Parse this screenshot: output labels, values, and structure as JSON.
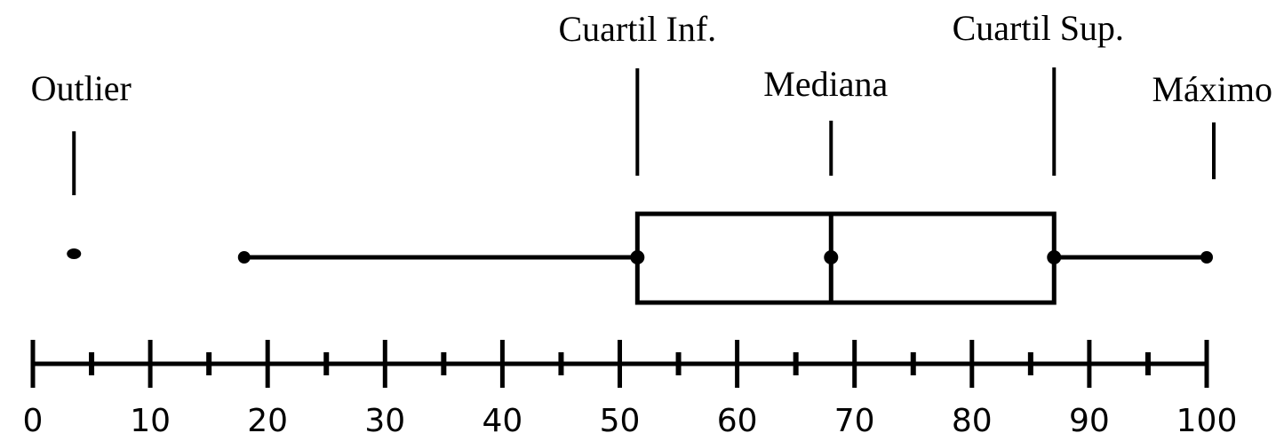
{
  "chart_data": {
    "type": "boxplot",
    "outlier": 3.5,
    "whisker_low": 18,
    "q1": 51.5,
    "median": 68,
    "q3": 87,
    "max": 100,
    "xlim": [
      0,
      100
    ],
    "major_ticks": [
      0,
      10,
      20,
      30,
      40,
      50,
      60,
      70,
      80,
      90,
      100
    ],
    "minor_ticks": [
      5,
      15,
      25,
      35,
      45,
      55,
      65,
      75,
      85,
      95
    ],
    "tick_labels": [
      "0",
      "10",
      "20",
      "30",
      "40",
      "50",
      "60",
      "70",
      "80",
      "90",
      "100"
    ],
    "annotations": [
      {
        "key": "outlier",
        "label": "Outlier",
        "value": 3.5
      },
      {
        "key": "q1",
        "label": "Cuartil Inf.",
        "value": 51.5
      },
      {
        "key": "median",
        "label": "Mediana",
        "value": 68
      },
      {
        "key": "q3",
        "label": "Cuartil Sup.",
        "value": 87
      },
      {
        "key": "max",
        "label": "Máximo",
        "value": 100
      }
    ]
  }
}
